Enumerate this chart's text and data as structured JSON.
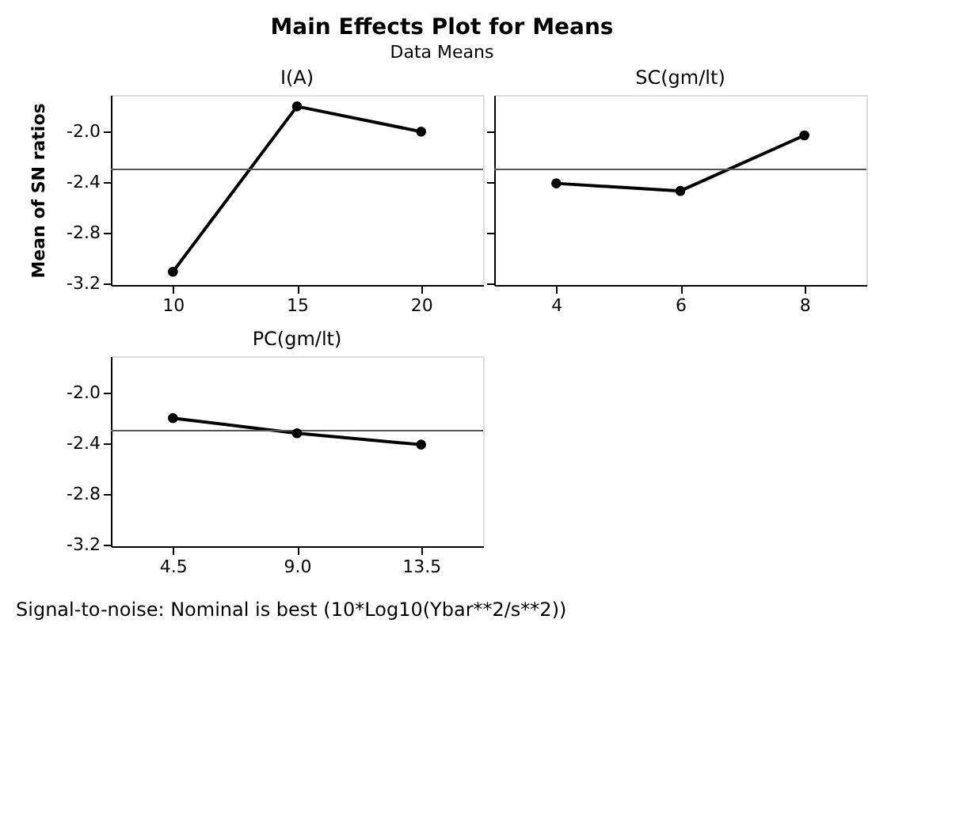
{
  "chart_data": [
    {
      "type": "other",
      "title": "Main Effects Plot for Means",
      "subtitle": "Data Means",
      "annotations": [
        "Signal-to-noise: Nominal is best (10*Log10(Ybar**2/s**2))"
      ]
    },
    {
      "type": "line",
      "title": "I(A)",
      "ylabel": "Mean of SN ratios",
      "categories": [
        "10",
        "15",
        "20"
      ],
      "values": [
        -3.11,
        -1.8,
        -2.0
      ],
      "color": "#000000",
      "marker": "circle",
      "line_style": "solid",
      "ylim": [
        -3.215,
        -1.71
      ],
      "yticks": [
        -3.2,
        -2.8,
        -2.4,
        {
          "value": -2.0,
          "label": "-2.0"
        }
      ],
      "ref_lines": [
        {
          "axis": "y",
          "value": -2.3,
          "color": "#555555"
        }
      ],
      "grid": false
    },
    {
      "type": "line",
      "title": "SC(gm/lt)",
      "categories": [
        "4",
        "6",
        "8"
      ],
      "values": [
        -2.41,
        -2.47,
        -2.03
      ],
      "color": "#000000",
      "marker": "circle",
      "line_style": "solid",
      "ylim": [
        -3.215,
        -1.71
      ],
      "yticks": [
        -3.2,
        -2.8,
        -2.4,
        -2.0
      ],
      "tick_labels": "x",
      "ref_lines": [
        {
          "axis": "y",
          "value": -2.3,
          "color": "#555555"
        }
      ],
      "grid": false
    },
    {
      "type": "line",
      "title": "PC(gm/lt)",
      "categories": [
        "4.5",
        "9.0",
        "13.5"
      ],
      "values": [
        -2.2,
        -2.32,
        -2.41
      ],
      "color": "#000000",
      "marker": "circle",
      "line_style": "solid",
      "ylim": [
        -3.215,
        -1.71
      ],
      "yticks": [
        -3.2,
        -2.8,
        -2.4,
        {
          "value": -2.0,
          "label": "-2.0"
        }
      ],
      "ref_lines": [
        {
          "axis": "y",
          "value": -2.3,
          "color": "#555555"
        }
      ],
      "grid": false
    }
  ]
}
